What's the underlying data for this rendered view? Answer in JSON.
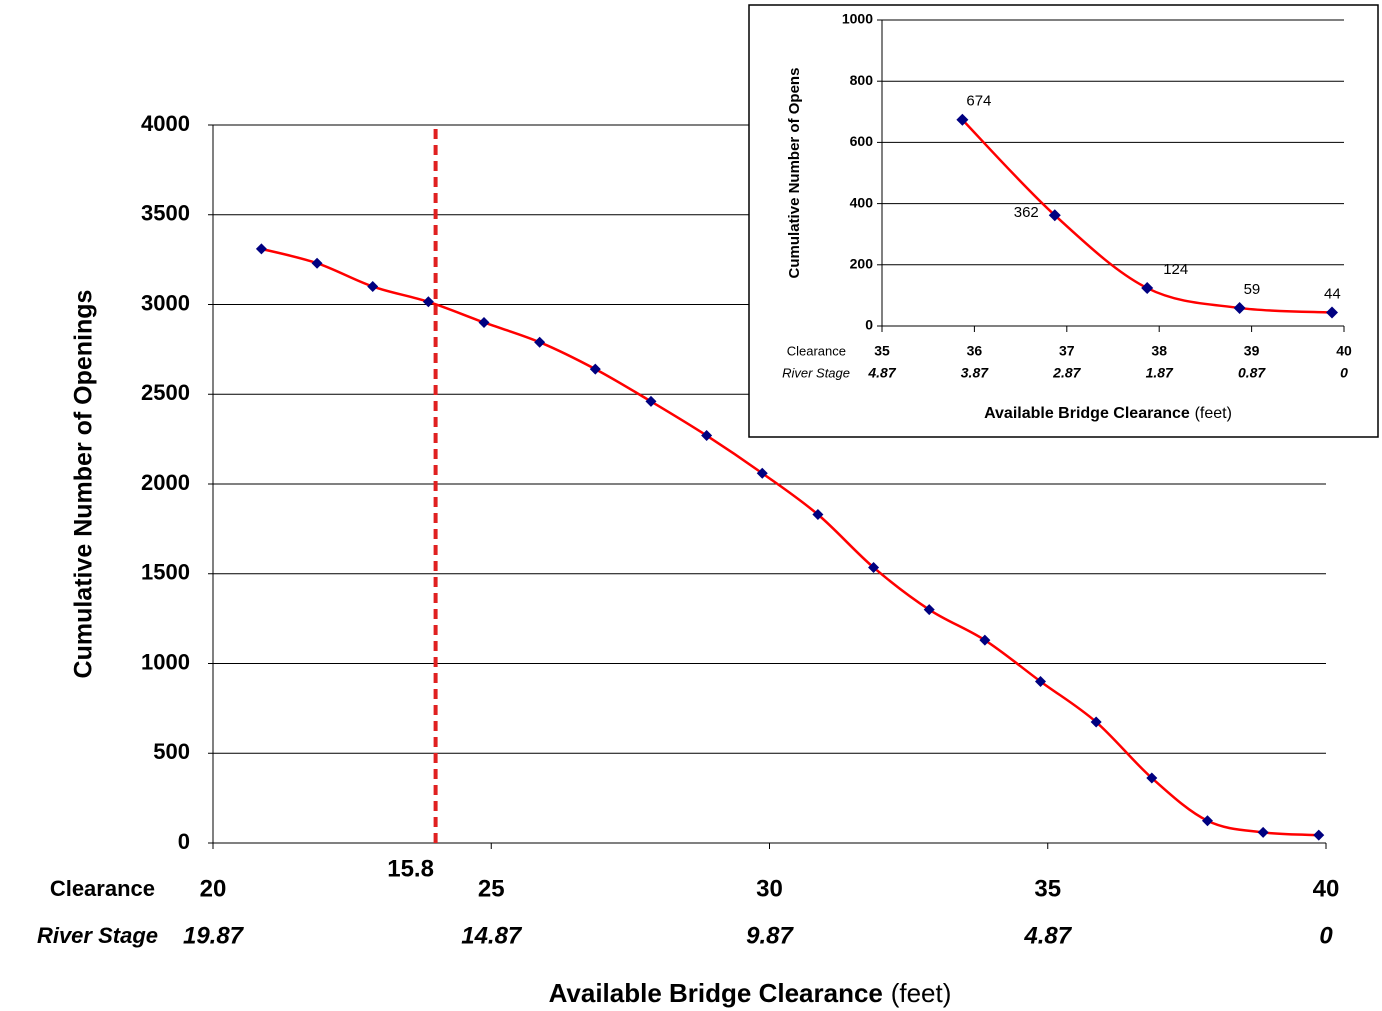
{
  "chart_data": [
    {
      "type": "line",
      "ylabel": "Cumulative Number of Openings",
      "xlabel": "Available Bridge Clearance",
      "xlabel_unit": "(feet)",
      "x": [
        20.87,
        21.87,
        22.87,
        23.87,
        24.87,
        25.87,
        26.87,
        27.87,
        28.87,
        29.87,
        30.87,
        31.87,
        32.87,
        33.87,
        34.87,
        35.87,
        36.87,
        37.87,
        38.87,
        39.87
      ],
      "series": [
        {
          "color": "#ff0000",
          "marker_color": "#000080",
          "values": [
            3310,
            3230,
            3100,
            3015,
            2900,
            2790,
            2640,
            2460,
            2270,
            2060,
            1830,
            1535,
            1300,
            1130,
            900,
            674,
            362,
            124,
            59,
            44
          ]
        }
      ],
      "xlim": [
        20,
        40
      ],
      "xticks": [
        20,
        25,
        30,
        35,
        40
      ],
      "xtick_row_label": "Clearance",
      "secondary_xticks": {
        "label": "River Stage",
        "values": [
          19.87,
          14.87,
          9.87,
          4.87,
          0
        ]
      },
      "ylim": [
        0,
        4000
      ],
      "yticks": [
        0,
        500,
        1000,
        1500,
        2000,
        2500,
        3000,
        3500,
        4000
      ],
      "grid": true,
      "annotation": {
        "x": 24,
        "label": "15.8",
        "color": "#e02020"
      }
    },
    {
      "type": "line",
      "ylabel": "Cumulative Number of Opens",
      "xlabel": "Available Bridge Clearance",
      "xlabel_unit": "(feet)",
      "x": [
        35.87,
        36.87,
        37.87,
        38.87,
        39.87
      ],
      "series": [
        {
          "color": "#ff0000",
          "marker_color": "#000080",
          "values": [
            674,
            362,
            124,
            59,
            44
          ]
        }
      ],
      "xlim": [
        35,
        40
      ],
      "xticks": [
        35,
        36,
        37,
        38,
        39,
        40
      ],
      "xtick_row_label": "Clearance",
      "secondary_xticks": {
        "label": "River Stage",
        "values": [
          4.87,
          3.87,
          2.87,
          1.87,
          0.87,
          0
        ]
      },
      "ylim": [
        0,
        1000
      ],
      "yticks": [
        0,
        200,
        400,
        600,
        800,
        1000
      ],
      "grid": true,
      "data_labels": true
    }
  ]
}
